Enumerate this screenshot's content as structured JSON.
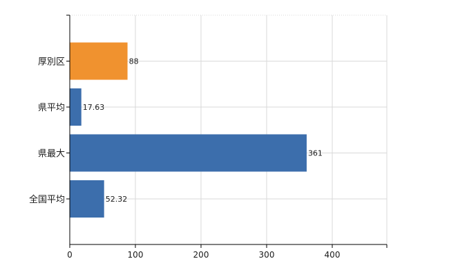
{
  "chart_data": {
    "type": "bar",
    "orientation": "horizontal",
    "title": "",
    "xlabel": "",
    "ylabel": "",
    "categories": [
      "厚別区",
      "県平均",
      "県最大",
      "全国平均"
    ],
    "values": [
      88,
      17.63,
      361,
      52.32
    ],
    "value_labels": [
      "88",
      "17.63",
      "361",
      "52.32"
    ],
    "bar_colors": [
      "#F0922F",
      "#3C6EAC",
      "#3C6EAC",
      "#3C6EAC"
    ],
    "xlim": [
      0,
      435
    ],
    "x_ticks": [
      0,
      100,
      200,
      300,
      400
    ],
    "x_tick_labels": [
      "0",
      "100",
      "200",
      "300",
      "400"
    ],
    "grid": true,
    "legend": "none"
  }
}
